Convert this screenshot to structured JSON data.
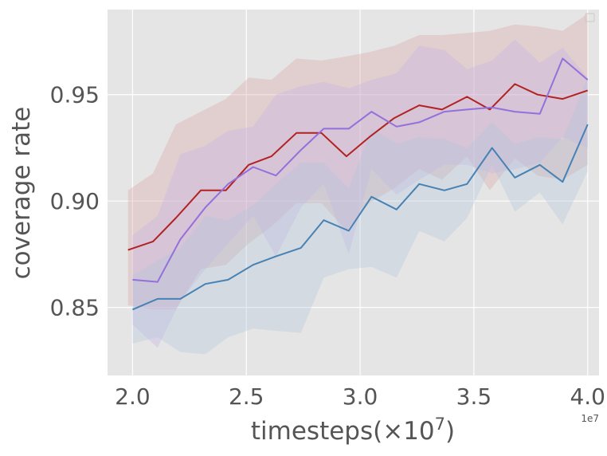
{
  "chart_data": {
    "type": "line",
    "xlabel": "timesteps(×10⁷)",
    "ylabel": "coverage rate",
    "x_offset_label": "1e7",
    "xlim": [
      1.89,
      4.05
    ],
    "ylim": [
      0.818,
      0.99
    ],
    "x_ticks": [
      {
        "value": 2.0,
        "label": "2.0"
      },
      {
        "value": 2.5,
        "label": "2.5"
      },
      {
        "value": 3.0,
        "label": "3.0"
      },
      {
        "value": 3.5,
        "label": "3.5"
      },
      {
        "value": 4.0,
        "label": "4.0"
      }
    ],
    "y_ticks": [
      {
        "value": 0.85,
        "label": "0.85"
      },
      {
        "value": 0.9,
        "label": "0.90"
      },
      {
        "value": 0.95,
        "label": "0.95"
      }
    ],
    "grid": true,
    "legend": "top-right (empty)",
    "series": [
      {
        "color": "#b22222",
        "fill_color": "#d9a3a3",
        "x": [
          1.98,
          2.09,
          2.19,
          2.3,
          2.41,
          2.51,
          2.61,
          2.72,
          2.83,
          2.94,
          3.04,
          3.15,
          3.26,
          3.36,
          3.47,
          3.57,
          3.68,
          3.78,
          3.89,
          4.0
        ],
        "values": [
          0.877,
          0.881,
          0.892,
          0.905,
          0.905,
          0.917,
          0.921,
          0.932,
          0.932,
          0.921,
          0.93,
          0.939,
          0.945,
          0.943,
          0.949,
          0.943,
          0.955,
          0.95,
          0.948,
          0.952
        ],
        "lower": [
          0.851,
          0.849,
          0.849,
          0.868,
          0.87,
          0.88,
          0.888,
          0.899,
          0.899,
          0.886,
          0.899,
          0.906,
          0.915,
          0.91,
          0.921,
          0.905,
          0.92,
          0.912,
          0.91,
          0.917
        ],
        "upper": [
          0.905,
          0.913,
          0.936,
          0.942,
          0.948,
          0.958,
          0.957,
          0.967,
          0.966,
          0.968,
          0.97,
          0.973,
          0.978,
          0.978,
          0.979,
          0.98,
          0.983,
          0.982,
          0.98,
          0.988
        ]
      },
      {
        "color": "#9370db",
        "fill_color": "#c7b3e6",
        "x": [
          2.0,
          2.11,
          2.21,
          2.32,
          2.42,
          2.53,
          2.63,
          2.74,
          2.84,
          2.95,
          3.05,
          3.16,
          3.26,
          3.37,
          3.47,
          3.58,
          3.68,
          3.79,
          3.89,
          4.0
        ],
        "values": [
          0.863,
          0.862,
          0.882,
          0.897,
          0.908,
          0.916,
          0.912,
          0.924,
          0.934,
          0.934,
          0.942,
          0.935,
          0.937,
          0.942,
          0.943,
          0.944,
          0.942,
          0.941,
          0.967,
          0.957
        ],
        "lower": [
          0.842,
          0.831,
          0.853,
          0.868,
          0.88,
          0.893,
          0.874,
          0.897,
          0.908,
          0.875,
          0.915,
          0.903,
          0.91,
          0.917,
          0.917,
          0.913,
          0.915,
          0.918,
          0.93,
          0.925
        ],
        "upper": [
          0.884,
          0.893,
          0.922,
          0.926,
          0.933,
          0.935,
          0.95,
          0.954,
          0.956,
          0.953,
          0.957,
          0.96,
          0.973,
          0.971,
          0.962,
          0.966,
          0.976,
          0.965,
          0.972,
          0.958
        ]
      },
      {
        "color": "#4682b4",
        "fill_color": "#b3c7dc",
        "x": [
          2.0,
          2.11,
          2.21,
          2.32,
          2.42,
          2.53,
          2.63,
          2.74,
          2.84,
          2.95,
          3.05,
          3.16,
          3.26,
          3.37,
          3.47,
          3.58,
          3.68,
          3.79,
          3.89,
          4.0
        ],
        "values": [
          0.849,
          0.854,
          0.854,
          0.861,
          0.863,
          0.87,
          0.874,
          0.878,
          0.891,
          0.886,
          0.902,
          0.896,
          0.908,
          0.905,
          0.908,
          0.925,
          0.911,
          0.917,
          0.909,
          0.936
        ],
        "lower": [
          0.833,
          0.836,
          0.829,
          0.828,
          0.836,
          0.84,
          0.839,
          0.838,
          0.864,
          0.868,
          0.869,
          0.864,
          0.886,
          0.881,
          0.892,
          0.917,
          0.895,
          0.904,
          0.889,
          0.914
        ],
        "upper": [
          0.865,
          0.872,
          0.878,
          0.893,
          0.891,
          0.898,
          0.908,
          0.918,
          0.918,
          0.906,
          0.934,
          0.927,
          0.93,
          0.929,
          0.925,
          0.937,
          0.927,
          0.93,
          0.929,
          0.958
        ]
      }
    ]
  }
}
